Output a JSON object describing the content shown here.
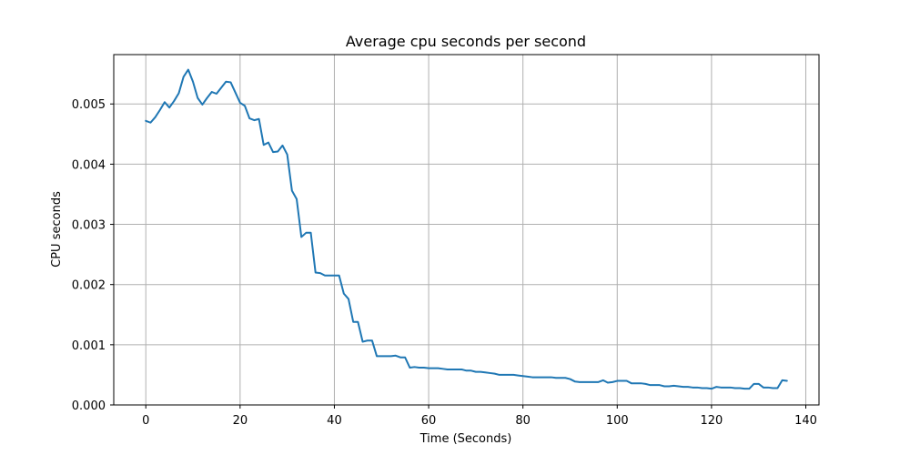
{
  "chart_data": {
    "type": "line",
    "title": "Average cpu seconds per second",
    "xlabel": "Time (Seconds)",
    "ylabel": "CPU seconds",
    "xlim": [
      -6.8,
      142.8
    ],
    "ylim": [
      0,
      0.00582
    ],
    "xticks": [
      0,
      20,
      40,
      60,
      80,
      100,
      120,
      140
    ],
    "yticks": [
      0,
      0.001,
      0.002,
      0.003,
      0.004,
      0.005
    ],
    "xtick_labels": [
      "0",
      "20",
      "40",
      "60",
      "80",
      "100",
      "120",
      "140"
    ],
    "ytick_labels": [
      "0.000",
      "0.001",
      "0.002",
      "0.003",
      "0.004",
      "0.005"
    ],
    "grid": true,
    "line_color": "#1f77b4",
    "series": [
      {
        "x": [
          0,
          1,
          2,
          3,
          4,
          5,
          6,
          7,
          8,
          9,
          10,
          11,
          12,
          13,
          14,
          15,
          16,
          17,
          18,
          19,
          20,
          21,
          22,
          23,
          24,
          25,
          26,
          27,
          28,
          29,
          30,
          31,
          32,
          33,
          34,
          35,
          36,
          37,
          38,
          39,
          40,
          41,
          42,
          43,
          44,
          45,
          46,
          47,
          48,
          49,
          50,
          51,
          52,
          53,
          54,
          55,
          56,
          57,
          58,
          59,
          60,
          61,
          62,
          63,
          64,
          65,
          66,
          67,
          68,
          69,
          70,
          71,
          72,
          73,
          74,
          75,
          76,
          77,
          78,
          79,
          80,
          81,
          82,
          83,
          84,
          85,
          86,
          87,
          88,
          89,
          90,
          91,
          92,
          93,
          94,
          95,
          96,
          97,
          98,
          99,
          100,
          101,
          102,
          103,
          104,
          105,
          106,
          107,
          108,
          109,
          110,
          111,
          112,
          113,
          114,
          115,
          116,
          117,
          118,
          119,
          120,
          121,
          122,
          123,
          124,
          125,
          126,
          127,
          128,
          129,
          130,
          131,
          132,
          133,
          134,
          135,
          136
        ],
        "values": [
          0.00472,
          0.00469,
          0.00478,
          0.0049,
          0.00503,
          0.00494,
          0.00505,
          0.00518,
          0.00545,
          0.00557,
          0.00537,
          0.0051,
          0.00499,
          0.0051,
          0.0052,
          0.00517,
          0.00527,
          0.00537,
          0.00536,
          0.00519,
          0.00502,
          0.00497,
          0.00476,
          0.00473,
          0.00475,
          0.00432,
          0.00436,
          0.0042,
          0.00421,
          0.00431,
          0.00416,
          0.00356,
          0.00342,
          0.00279,
          0.00286,
          0.00286,
          0.0022,
          0.00219,
          0.00215,
          0.00215,
          0.00215,
          0.00215,
          0.00185,
          0.00176,
          0.00138,
          0.00138,
          0.00105,
          0.00107,
          0.00107,
          0.00081,
          0.00081,
          0.00081,
          0.00081,
          0.00082,
          0.00079,
          0.00079,
          0.00062,
          0.00063,
          0.00062,
          0.00062,
          0.00061,
          0.00061,
          0.00061,
          0.0006,
          0.00059,
          0.00059,
          0.00059,
          0.00059,
          0.00057,
          0.00057,
          0.00055,
          0.00055,
          0.00054,
          0.00053,
          0.00052,
          0.0005,
          0.0005,
          0.0005,
          0.0005,
          0.00049,
          0.00048,
          0.00047,
          0.00046,
          0.00046,
          0.00046,
          0.00046,
          0.00046,
          0.00045,
          0.00045,
          0.00045,
          0.00043,
          0.00039,
          0.00038,
          0.00038,
          0.00038,
          0.00038,
          0.00038,
          0.00041,
          0.00037,
          0.00038,
          0.0004,
          0.0004,
          0.0004,
          0.00036,
          0.00036,
          0.00036,
          0.00035,
          0.00033,
          0.00033,
          0.00033,
          0.00031,
          0.00031,
          0.00032,
          0.00031,
          0.0003,
          0.0003,
          0.00029,
          0.00029,
          0.00028,
          0.00028,
          0.00027,
          0.0003,
          0.00029,
          0.00029,
          0.00029,
          0.00028,
          0.00028,
          0.00027,
          0.00027,
          0.00035,
          0.00035,
          0.00029,
          0.00029,
          0.00028,
          0.00028,
          0.00041,
          0.0004
        ]
      }
    ]
  }
}
